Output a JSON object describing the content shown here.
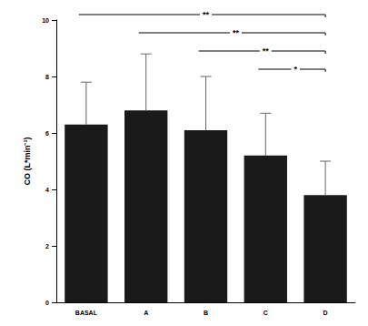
{
  "chart_data": {
    "type": "bar",
    "y_label": "CO (L*min⁻¹)",
    "categories": [
      "BASAL",
      "A",
      "B",
      "C",
      "D"
    ],
    "values": [
      6.3,
      6.8,
      6.1,
      5.2,
      3.8
    ],
    "errors": [
      1.5,
      2.0,
      1.9,
      1.5,
      1.2
    ],
    "color": "#1a1a1a",
    "ylim": [
      0,
      10
    ],
    "yticks": [
      0,
      2,
      4,
      6,
      8,
      10
    ],
    "grid": false,
    "annotations": [
      {
        "from": "BASAL",
        "to": "D",
        "label": "**"
      },
      {
        "from": "A",
        "to": "D",
        "label": "**"
      },
      {
        "from": "B",
        "to": "D",
        "label": "**"
      },
      {
        "from": "C",
        "to": "D",
        "label": "*"
      }
    ]
  }
}
